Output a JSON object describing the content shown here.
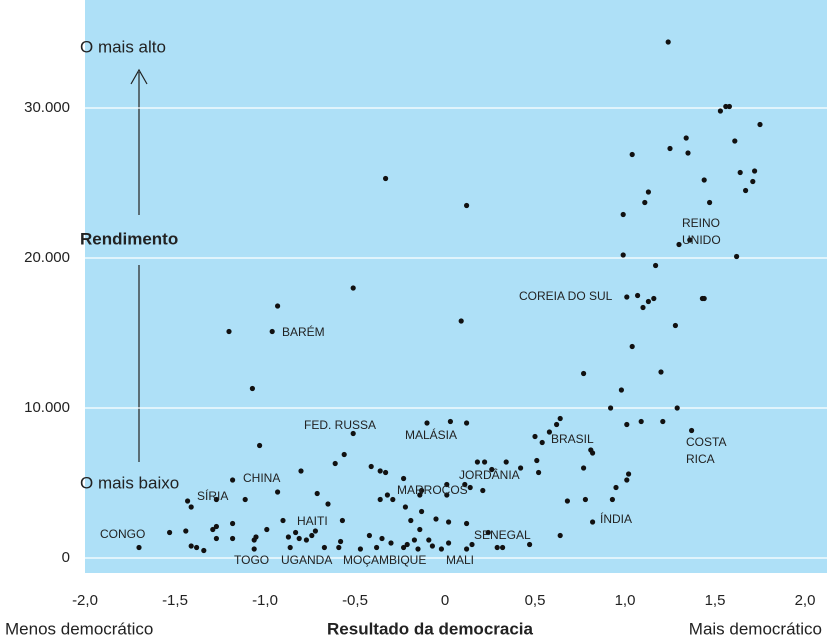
{
  "chart_data": {
    "type": "scatter",
    "y_label": "Rendimento",
    "x_label": "Resultado da democracia",
    "x_left_note": "Menos democrático",
    "x_right_note": "Mais democrático",
    "y_top_note": "O mais alto",
    "y_bottom_note": "O mais baixo",
    "color": "#111111",
    "background": "#aee0f7",
    "grid": true,
    "xlim": [
      -2,
      2
    ],
    "ylim": [
      -1000,
      37000
    ],
    "xticks": [
      {
        "value": -2,
        "label": "-2,0"
      },
      {
        "value": -1.5,
        "label": "-1,5"
      },
      {
        "value": -1,
        "label": "-1,0"
      },
      {
        "value": -0.5,
        "label": "-0,5"
      },
      0,
      {
        "value": 0.5,
        "label": "0,5"
      },
      {
        "value": 1,
        "label": "1,0"
      },
      {
        "value": 1.5,
        "label": "1,5"
      },
      {
        "value": 2,
        "label": "2,0"
      }
    ],
    "yticks": [
      0,
      {
        "value": 10000,
        "label": "10.000"
      },
      {
        "value": 20000,
        "label": "20.000"
      },
      {
        "value": 30000,
        "label": "30.000"
      }
    ],
    "annotations": [
      "CONGO",
      "SÍRIA",
      "CHINA",
      "BARÉM",
      "HAITI",
      "TOGO",
      "UGANDA",
      "MOÇAMBIQUE",
      "MALI",
      "FED. RUSSA",
      "MALÁSIA",
      "MARROCOS",
      "JORDÂNIA",
      "SENEGAL",
      "BRASIL",
      "ÍNDIA",
      "COREIA DO SUL",
      "REINO",
      "UNIDO",
      "COSTA",
      "RICA"
    ],
    "x": [
      -1.7,
      -1.53,
      -1.44,
      -1.41,
      -1.38,
      -1.34,
      -1.29,
      -1.27,
      -1.27,
      -1.18,
      -1.18,
      -1.06,
      -1.05,
      -1.06,
      -0.99,
      -0.9,
      -0.87,
      -0.83,
      -0.86,
      -0.81,
      -0.77,
      -0.74,
      -0.72,
      -0.67,
      -0.59,
      -0.57,
      -0.58,
      -0.47,
      -0.42,
      -0.38,
      -0.35,
      -0.3,
      -0.23,
      -0.21,
      -0.15,
      -0.17,
      -0.19,
      -0.14,
      -0.09,
      -0.07,
      -0.02,
      0.02,
      0.12,
      0.15,
      0.12,
      0.24,
      0.29,
      0.32,
      0.47,
      0.64,
      -1.43,
      -1.41,
      -1.27,
      -1.18,
      -1.11,
      -0.93,
      -0.8,
      -0.71,
      -0.65,
      -0.61,
      -0.56,
      -0.41,
      -0.36,
      -0.33,
      -0.36,
      -0.32,
      -0.29,
      -0.22,
      -0.23,
      -0.14,
      0.01,
      0.01,
      0.14,
      0.18,
      0.21,
      0.22,
      0.26,
      0.34,
      0.42,
      0.5,
      0.51,
      0.54,
      0.62,
      0.64,
      0.58,
      0.52,
      0.68,
      0.78,
      0.81,
      0.82,
      0.77,
      0.93,
      0.95,
      1.01,
      1.02,
      0.92,
      1.01,
      1.09,
      1.21,
      1.29,
      1.37,
      0.77,
      0.98,
      0.99,
      1.01,
      1.04,
      1.07,
      1.13,
      1.16,
      1.1,
      1.17,
      1.2,
      1.28,
      1.3,
      0.99,
      1.04,
      1.11,
      1.13,
      1.34,
      1.35,
      1.25,
      1.36,
      1.43,
      1.44,
      1.44,
      1.47,
      1.53,
      1.56,
      1.58,
      1.61,
      1.62,
      1.64,
      1.67,
      1.71,
      1.72,
      1.75,
      1.24,
      -1.2,
      -0.96,
      -0.93,
      -1.07,
      -1.03,
      -0.33,
      -0.51,
      0.12,
      0.09,
      0.03,
      -0.1,
      -0.51,
      -0.13,
      -0.05,
      0.02,
      0.11,
      -0.13,
      0.12,
      0.82
    ],
    "y": [
      700,
      1700,
      1800,
      800,
      700,
      500,
      1900,
      2100,
      1300,
      2300,
      1300,
      1200,
      1400,
      600,
      1900,
      2500,
      1400,
      1700,
      700,
      1300,
      1200,
      1500,
      1800,
      700,
      700,
      2500,
      1100,
      600,
      1500,
      700,
      1300,
      1000,
      700,
      900,
      600,
      1200,
      2500,
      1900,
      1200,
      800,
      600,
      1000,
      600,
      900,
      2300,
      1700,
      700,
      700,
      900,
      1500,
      3800,
      3400,
      3900,
      5200,
      3900,
      4400,
      5800,
      4300,
      3600,
      6300,
      6900,
      6100,
      5800,
      5700,
      3900,
      4200,
      3900,
      3400,
      5300,
      4200,
      4200,
      4900,
      4700,
      6400,
      4500,
      6400,
      5900,
      6400,
      6000,
      8100,
      6500,
      7700,
      8900,
      9300,
      8400,
      5700,
      3800,
      3900,
      7200,
      7000,
      6000,
      3900,
      4700,
      5200,
      5600,
      10000,
      8900,
      9100,
      9100,
      10000,
      8500,
      12300,
      11200,
      20200,
      17400,
      14100,
      17500,
      17100,
      17300,
      16700,
      19500,
      12400,
      15500,
      20900,
      22900,
      26900,
      23700,
      24400,
      28000,
      27000,
      27300,
      21200,
      17300,
      17300,
      25200,
      23700,
      29800,
      30100,
      30100,
      27800,
      20100,
      25700,
      24500,
      25100,
      25800,
      28900,
      34400,
      15100,
      15100,
      16800,
      11300,
      7500,
      25300,
      18000,
      23500,
      15800,
      9100,
      9000,
      8300,
      3100,
      2600,
      2400,
      4900,
      4500,
      9000,
      2400
    ]
  }
}
